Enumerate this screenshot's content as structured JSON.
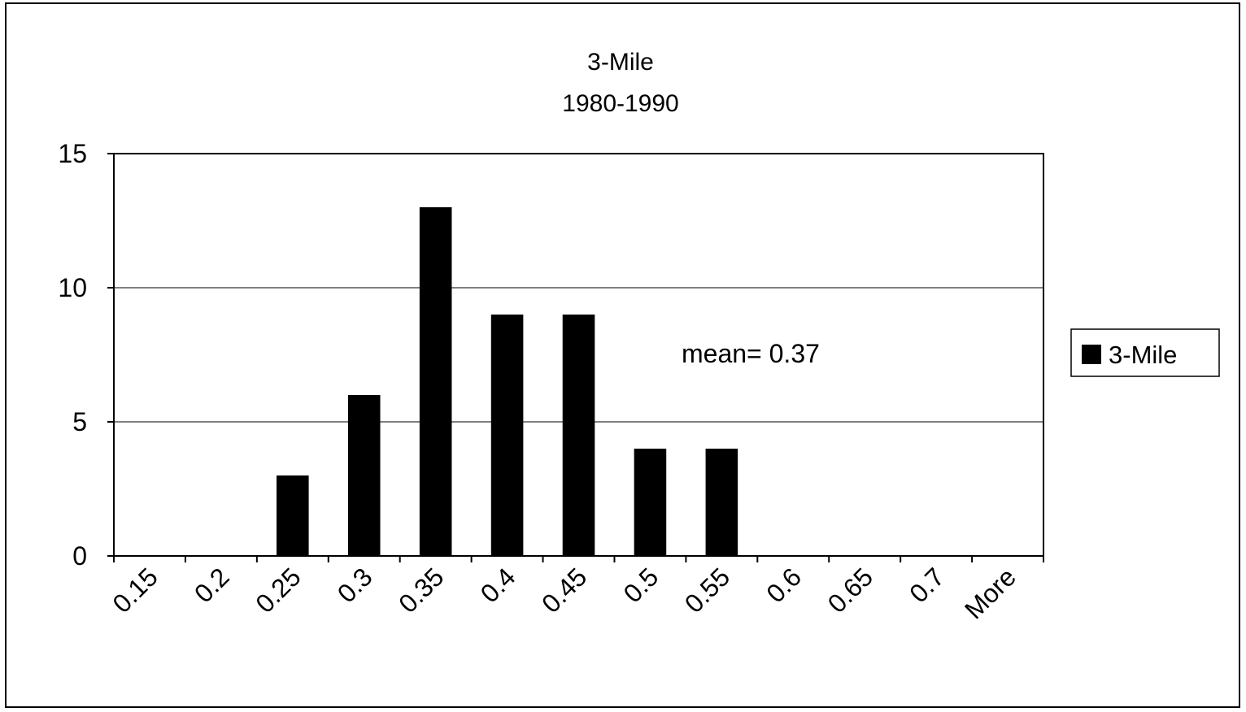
{
  "chart_data": {
    "type": "bar",
    "title_lines": [
      "3-Mile",
      "1980-1990"
    ],
    "categories": [
      "0.15",
      "0.2",
      "0.25",
      "0.3",
      "0.35",
      "0.4",
      "0.45",
      "0.5",
      "0.55",
      "0.6",
      "0.65",
      "0.7",
      "More"
    ],
    "series": [
      {
        "name": "3-Mile",
        "values": [
          0,
          0,
          3,
          6,
          13,
          9,
          9,
          4,
          4,
          0,
          0,
          0,
          0
        ],
        "color": "#000000"
      }
    ],
    "y_ticks": [
      "0",
      "5",
      "10",
      "15"
    ],
    "ylim": [
      0,
      15
    ],
    "grid": true,
    "legend_position": "right",
    "annotation": "mean= 0.37",
    "xlabel": "",
    "ylabel": ""
  }
}
